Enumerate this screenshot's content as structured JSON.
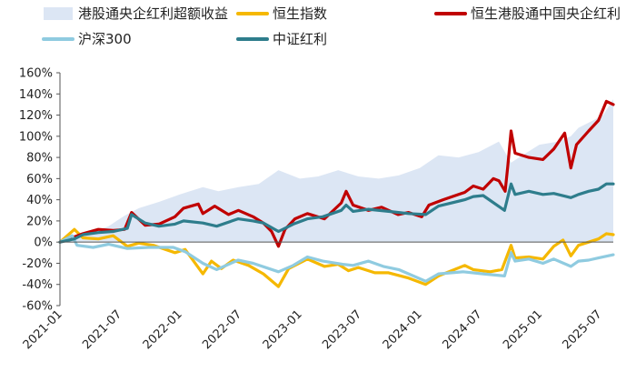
{
  "chart_data": {
    "type": "line",
    "title": "",
    "xlabel": "",
    "ylabel": "",
    "ylim": [
      -60,
      160
    ],
    "y_unit": "%",
    "y_ticks": [
      -60,
      -40,
      -20,
      0,
      20,
      40,
      60,
      80,
      100,
      120,
      140,
      160
    ],
    "x_ticks": [
      "2021-01",
      "2021-07",
      "2022-01",
      "2022-07",
      "2023-01",
      "2023-07",
      "2024-01",
      "2024-07",
      "2025-01",
      "2025-07"
    ],
    "xlim": [
      "2021-01-04",
      "2025-08-15"
    ],
    "grid": false,
    "legend_position": "top",
    "series": [
      {
        "name": "港股通央企红利超额收益",
        "style": "area",
        "color": "#dce6f4",
        "points": [
          [
            "2021-01-04",
            0
          ],
          [
            "2021-02-15",
            5
          ],
          [
            "2021-04-01",
            8
          ],
          [
            "2021-06-01",
            15
          ],
          [
            "2021-07-20",
            25
          ],
          [
            "2021-09-01",
            32
          ],
          [
            "2021-11-01",
            38
          ],
          [
            "2022-01-04",
            45
          ],
          [
            "2022-03-15",
            52
          ],
          [
            "2022-05-01",
            48
          ],
          [
            "2022-07-01",
            52
          ],
          [
            "2022-09-01",
            55
          ],
          [
            "2022-10-31",
            68
          ],
          [
            "2023-01-04",
            60
          ],
          [
            "2023-03-01",
            62
          ],
          [
            "2023-05-01",
            68
          ],
          [
            "2023-07-01",
            62
          ],
          [
            "2023-09-01",
            60
          ],
          [
            "2023-11-01",
            63
          ],
          [
            "2024-01-04",
            70
          ],
          [
            "2024-03-01",
            82
          ],
          [
            "2024-05-01",
            80
          ],
          [
            "2024-07-01",
            85
          ],
          [
            "2024-09-01",
            95
          ],
          [
            "2024-10-08",
            75
          ],
          [
            "2024-11-01",
            80
          ],
          [
            "2025-01-02",
            92
          ],
          [
            "2025-03-01",
            95
          ],
          [
            "2025-04-08",
            100
          ],
          [
            "2025-05-01",
            108
          ],
          [
            "2025-06-15",
            115
          ],
          [
            "2025-07-15",
            120
          ],
          [
            "2025-08-15",
            135
          ]
        ]
      },
      {
        "name": "恒生指数",
        "style": "line",
        "color": "#f5b800",
        "points": [
          [
            "2021-01-04",
            0
          ],
          [
            "2021-02-17",
            12
          ],
          [
            "2021-03-15",
            4
          ],
          [
            "2021-05-01",
            3
          ],
          [
            "2021-06-15",
            6
          ],
          [
            "2021-07-28",
            -4
          ],
          [
            "2021-09-01",
            -1
          ],
          [
            "2021-10-15",
            -3
          ],
          [
            "2021-12-20",
            -10
          ],
          [
            "2022-01-20",
            -7
          ],
          [
            "2022-03-15",
            -30
          ],
          [
            "2022-04-10",
            -18
          ],
          [
            "2022-05-10",
            -25
          ],
          [
            "2022-06-15",
            -17
          ],
          [
            "2022-08-01",
            -22
          ],
          [
            "2022-09-15",
            -30
          ],
          [
            "2022-10-31",
            -42
          ],
          [
            "2022-12-01",
            -25
          ],
          [
            "2023-01-27",
            -16
          ],
          [
            "2023-03-20",
            -23
          ],
          [
            "2023-05-01",
            -21
          ],
          [
            "2023-06-01",
            -27
          ],
          [
            "2023-07-01",
            -24
          ],
          [
            "2023-08-20",
            -29
          ],
          [
            "2023-10-01",
            -29
          ],
          [
            "2023-12-01",
            -34
          ],
          [
            "2024-01-22",
            -40
          ],
          [
            "2024-03-01",
            -32
          ],
          [
            "2024-05-20",
            -22
          ],
          [
            "2024-06-15",
            -26
          ],
          [
            "2024-08-05",
            -28
          ],
          [
            "2024-09-10",
            -26
          ],
          [
            "2024-10-08",
            -3
          ],
          [
            "2024-10-20",
            -15
          ],
          [
            "2024-12-01",
            -14
          ],
          [
            "2025-01-13",
            -16
          ],
          [
            "2025-02-15",
            -4
          ],
          [
            "2025-03-15",
            2
          ],
          [
            "2025-04-08",
            -13
          ],
          [
            "2025-05-01",
            -3
          ],
          [
            "2025-06-01",
            0
          ],
          [
            "2025-07-01",
            3
          ],
          [
            "2025-07-25",
            8
          ],
          [
            "2025-08-15",
            7
          ]
        ]
      },
      {
        "name": "恒生港股通中国央企红利",
        "style": "line",
        "color": "#c00000",
        "points": [
          [
            "2021-01-04",
            0
          ],
          [
            "2021-02-17",
            5
          ],
          [
            "2021-03-15",
            8
          ],
          [
            "2021-05-01",
            12
          ],
          [
            "2021-06-15",
            11
          ],
          [
            "2021-07-20",
            12
          ],
          [
            "2021-08-10",
            28
          ],
          [
            "2021-09-20",
            16
          ],
          [
            "2021-11-01",
            17
          ],
          [
            "2021-12-20",
            24
          ],
          [
            "2022-01-15",
            32
          ],
          [
            "2022-03-01",
            36
          ],
          [
            "2022-03-15",
            27
          ],
          [
            "2022-04-20",
            34
          ],
          [
            "2022-06-01",
            26
          ],
          [
            "2022-07-01",
            30
          ],
          [
            "2022-08-15",
            24
          ],
          [
            "2022-09-15",
            18
          ],
          [
            "2022-10-10",
            10
          ],
          [
            "2022-10-31",
            -4
          ],
          [
            "2022-11-20",
            12
          ],
          [
            "2022-12-20",
            22
          ],
          [
            "2023-01-27",
            27
          ],
          [
            "2023-03-20",
            22
          ],
          [
            "2023-05-10",
            37
          ],
          [
            "2023-05-25",
            48
          ],
          [
            "2023-06-15",
            35
          ],
          [
            "2023-08-01",
            30
          ],
          [
            "2023-09-10",
            33
          ],
          [
            "2023-10-30",
            26
          ],
          [
            "2023-12-01",
            28
          ],
          [
            "2024-01-10",
            24
          ],
          [
            "2024-02-01",
            35
          ],
          [
            "2024-03-15",
            40
          ],
          [
            "2024-05-20",
            47
          ],
          [
            "2024-06-15",
            53
          ],
          [
            "2024-07-15",
            50
          ],
          [
            "2024-08-15",
            60
          ],
          [
            "2024-09-01",
            58
          ],
          [
            "2024-09-20",
            48
          ],
          [
            "2024-09-28",
            72
          ],
          [
            "2024-10-08",
            105
          ],
          [
            "2024-10-20",
            84
          ],
          [
            "2024-12-01",
            80
          ],
          [
            "2025-01-13",
            78
          ],
          [
            "2025-02-15",
            88
          ],
          [
            "2025-03-20",
            103
          ],
          [
            "2025-04-08",
            70
          ],
          [
            "2025-04-25",
            92
          ],
          [
            "2025-06-01",
            105
          ],
          [
            "2025-07-01",
            115
          ],
          [
            "2025-07-25",
            133
          ],
          [
            "2025-08-15",
            130
          ]
        ]
      },
      {
        "name": "沪深300",
        "style": "line",
        "color": "#8fcbe0",
        "points": [
          [
            "2021-01-04",
            0
          ],
          [
            "2021-02-10",
            6
          ],
          [
            "2021-02-25",
            -3
          ],
          [
            "2021-04-15",
            -5
          ],
          [
            "2021-06-01",
            -2
          ],
          [
            "2021-07-28",
            -6
          ],
          [
            "2021-10-01",
            -5
          ],
          [
            "2021-12-15",
            -5
          ],
          [
            "2022-01-20",
            -9
          ],
          [
            "2022-03-15",
            -20
          ],
          [
            "2022-04-26",
            -26
          ],
          [
            "2022-06-30",
            -17
          ],
          [
            "2022-08-15",
            -20
          ],
          [
            "2022-10-31",
            -28
          ],
          [
            "2022-12-15",
            -22
          ],
          [
            "2023-01-27",
            -14
          ],
          [
            "2023-03-15",
            -18
          ],
          [
            "2023-05-15",
            -21
          ],
          [
            "2023-06-15",
            -22
          ],
          [
            "2023-08-01",
            -18
          ],
          [
            "2023-09-15",
            -23
          ],
          [
            "2023-11-01",
            -26
          ],
          [
            "2024-01-22",
            -37
          ],
          [
            "2024-03-01",
            -30
          ],
          [
            "2024-05-15",
            -28
          ],
          [
            "2024-07-15",
            -30
          ],
          [
            "2024-09-18",
            -32
          ],
          [
            "2024-10-08",
            -10
          ],
          [
            "2024-10-20",
            -18
          ],
          [
            "2024-12-01",
            -16
          ],
          [
            "2025-01-13",
            -20
          ],
          [
            "2025-02-15",
            -16
          ],
          [
            "2025-04-08",
            -23
          ],
          [
            "2025-05-01",
            -18
          ],
          [
            "2025-06-01",
            -17
          ],
          [
            "2025-07-01",
            -15
          ],
          [
            "2025-08-15",
            -12
          ]
        ]
      },
      {
        "name": "中证红利",
        "style": "line",
        "color": "#2e7d8c",
        "points": [
          [
            "2021-01-04",
            0
          ],
          [
            "2021-02-17",
            3
          ],
          [
            "2021-03-15",
            7
          ],
          [
            "2021-05-01",
            9
          ],
          [
            "2021-06-15",
            10
          ],
          [
            "2021-07-28",
            13
          ],
          [
            "2021-08-10",
            26
          ],
          [
            "2021-09-20",
            18
          ],
          [
            "2021-11-01",
            15
          ],
          [
            "2021-12-20",
            17
          ],
          [
            "2022-01-15",
            20
          ],
          [
            "2022-03-15",
            18
          ],
          [
            "2022-04-26",
            15
          ],
          [
            "2022-06-30",
            22
          ],
          [
            "2022-08-15",
            20
          ],
          [
            "2022-09-15",
            18
          ],
          [
            "2022-10-31",
            10
          ],
          [
            "2022-12-15",
            17
          ],
          [
            "2023-01-27",
            22
          ],
          [
            "2023-03-15",
            24
          ],
          [
            "2023-05-10",
            30
          ],
          [
            "2023-05-25",
            35
          ],
          [
            "2023-06-15",
            29
          ],
          [
            "2023-08-01",
            31
          ],
          [
            "2023-10-01",
            29
          ],
          [
            "2023-12-01",
            27
          ],
          [
            "2024-01-22",
            26
          ],
          [
            "2024-03-01",
            34
          ],
          [
            "2024-05-20",
            40
          ],
          [
            "2024-06-15",
            43
          ],
          [
            "2024-07-15",
            44
          ],
          [
            "2024-09-18",
            30
          ],
          [
            "2024-10-08",
            55
          ],
          [
            "2024-10-20",
            45
          ],
          [
            "2024-12-01",
            48
          ],
          [
            "2025-01-13",
            45
          ],
          [
            "2025-02-15",
            46
          ],
          [
            "2025-04-08",
            42
          ],
          [
            "2025-05-01",
            45
          ],
          [
            "2025-06-01",
            48
          ],
          [
            "2025-07-01",
            50
          ],
          [
            "2025-07-25",
            55
          ],
          [
            "2025-08-15",
            55
          ]
        ]
      }
    ]
  }
}
